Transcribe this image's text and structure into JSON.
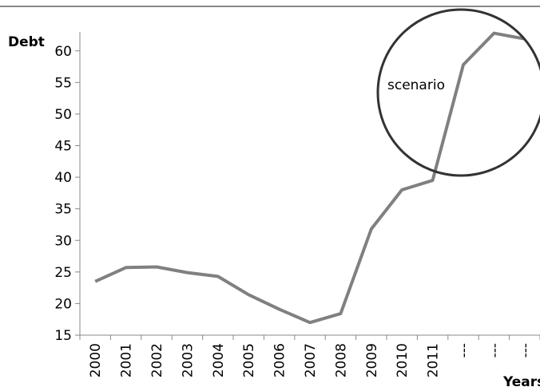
{
  "chart_data": {
    "type": "line",
    "y_label": "Debt",
    "x_label": "Years",
    "annotation": "scenario",
    "categories": [
      "2000",
      "2001",
      "2002",
      "2003",
      "2004",
      "2005",
      "2006",
      "2007",
      "2008",
      "2009",
      "2010",
      "2011",
      "---",
      "---",
      "---"
    ],
    "values": [
      23.5,
      25.7,
      25.8,
      24.9,
      24.3,
      21.4,
      19.1,
      17.0,
      18.4,
      31.8,
      38.0,
      39.5,
      57.8,
      62.8,
      61.9
    ],
    "color": "#808080",
    "ylim": [
      15,
      63
    ],
    "yticks": [
      15,
      20,
      25,
      30,
      35,
      40,
      45,
      50,
      55,
      60
    ]
  }
}
